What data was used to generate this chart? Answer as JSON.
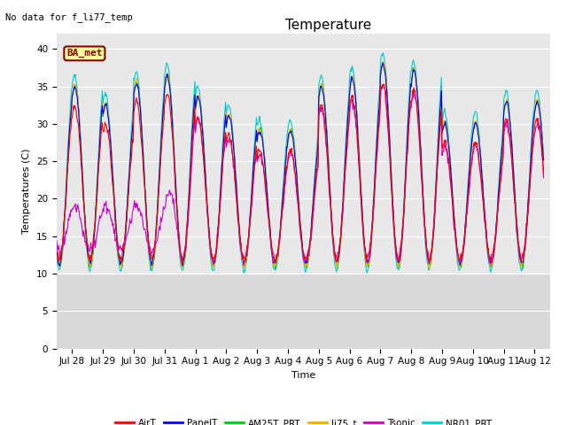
{
  "title": "Temperature",
  "xlabel": "Time",
  "ylabel": "Temperatures (C)",
  "annotation_text": "No data for f_li77_temp",
  "legend_label": "BA_met",
  "ylim": [
    0,
    42
  ],
  "yticks": [
    0,
    5,
    10,
    15,
    20,
    25,
    30,
    35,
    40
  ],
  "series_colors": {
    "AirT": "#ff0000",
    "PanelT": "#0000ff",
    "AM25T_PRT": "#00cc00",
    "li75_t": "#ffaa00",
    "Tsonic": "#cc00cc",
    "NR01_PRT": "#00cccc"
  },
  "bg_color": "#e8e8e8",
  "bg_color_low": "#d0d0d0",
  "grid_color": "#ffffff",
  "title_fontsize": 11,
  "axis_fontsize": 8,
  "tick_fontsize": 7.5
}
